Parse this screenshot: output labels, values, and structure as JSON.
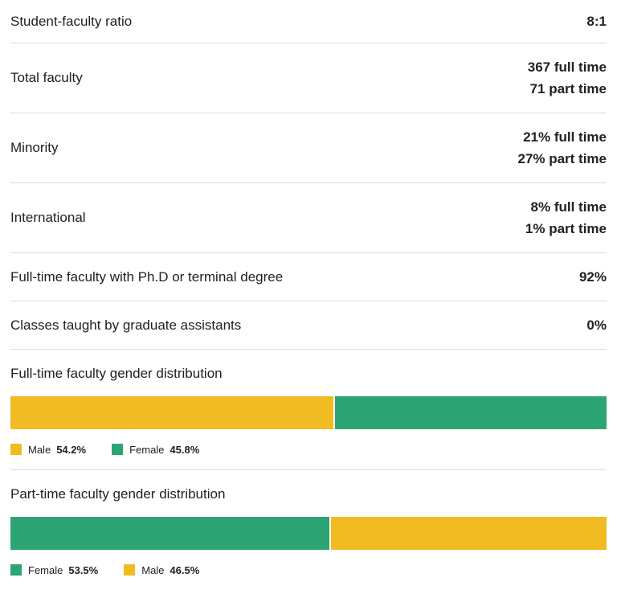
{
  "rows": [
    {
      "label": "Student-faculty ratio",
      "values": [
        "8:1"
      ]
    },
    {
      "label": "Total faculty",
      "values": [
        "367 full time",
        "71 part time"
      ]
    },
    {
      "label": "Minority",
      "values": [
        "21% full time",
        "27% part time"
      ]
    },
    {
      "label": "International",
      "values": [
        "8% full time",
        "1% part time"
      ]
    },
    {
      "label": "Full-time faculty with Ph.D or terminal degree",
      "values": [
        "92%"
      ]
    },
    {
      "label": "Classes taught by graduate assistants",
      "values": [
        "0%"
      ]
    }
  ],
  "colors": {
    "male": "#f0bc21",
    "female": "#2da474"
  },
  "distributions": [
    {
      "title": "Full-time faculty gender distribution",
      "segments": [
        {
          "name": "Male",
          "label": "54.2%",
          "percent": 54.2,
          "color": "#f0bc21"
        },
        {
          "name": "Female",
          "label": "45.8%",
          "percent": 45.8,
          "color": "#2da474"
        }
      ]
    },
    {
      "title": "Part-time faculty gender distribution",
      "segments": [
        {
          "name": "Female",
          "label": "53.5%",
          "percent": 53.5,
          "color": "#2da474"
        },
        {
          "name": "Male",
          "label": "46.5%",
          "percent": 46.5,
          "color": "#f0bc21"
        }
      ]
    }
  ]
}
